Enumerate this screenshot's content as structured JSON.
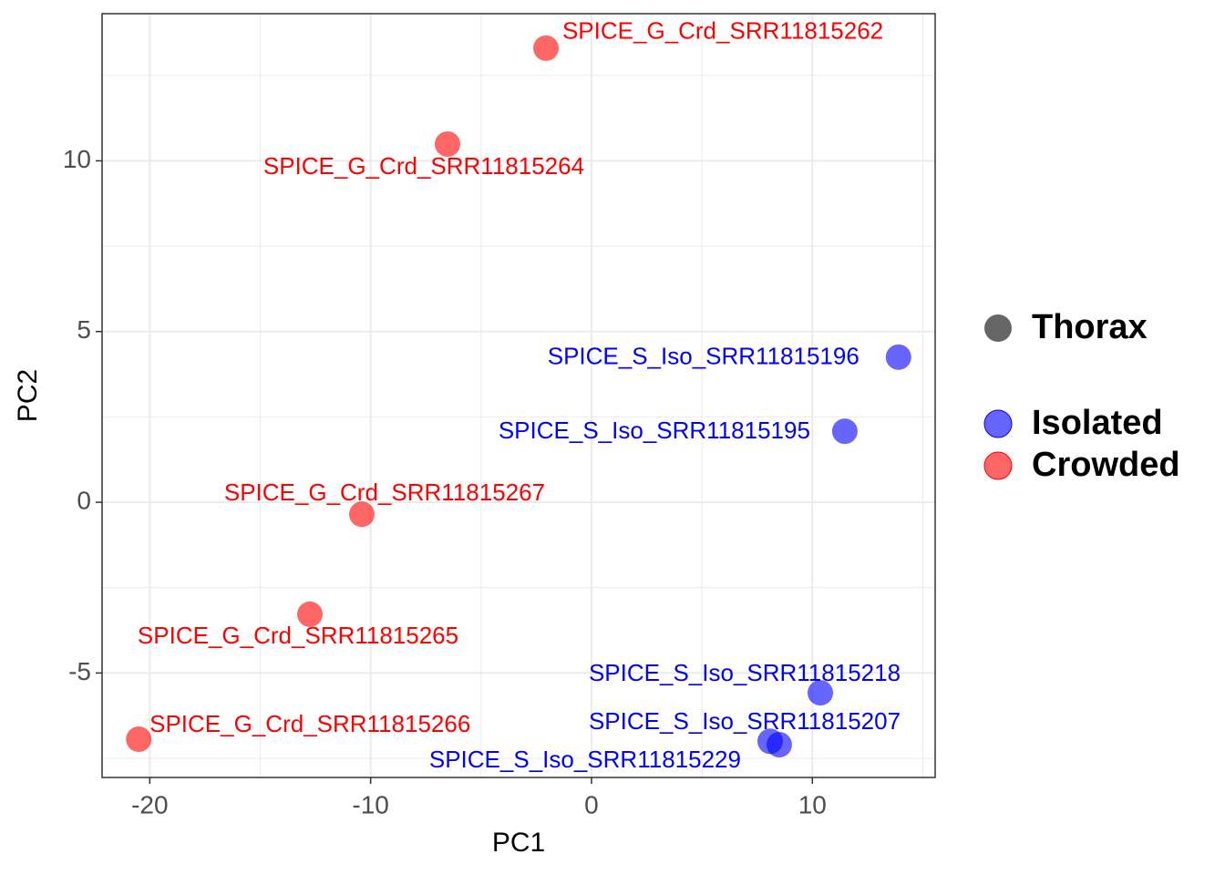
{
  "chart_data": {
    "type": "scatter",
    "x_label": "PC1",
    "y_label": "PC2",
    "xlim": [
      -22.16,
      15.56
    ],
    "ylim": [
      -8.06,
      14.31
    ],
    "xticks": [
      -20,
      -10,
      0,
      10
    ],
    "yticks": [
      -5,
      0,
      5,
      10
    ],
    "grid": true,
    "minor_grid": true,
    "shape_legend": "Thorax",
    "series": [
      {
        "name": "Isolated",
        "color": "#0000ff",
        "x": [
          13.9,
          11.47,
          10.36,
          8.09,
          8.5
        ],
        "values": [
          4.25,
          2.08,
          -5.58,
          -7.0,
          -7.1
        ],
        "labels": [
          "SPICE_S_Iso_SRR11815196",
          "SPICE_S_Iso_SRR11815195",
          "SPICE_S_Iso_SRR11815218",
          "SPICE_S_Iso_SRR11815207",
          "SPICE_S_Iso_SRR11815229"
        ]
      },
      {
        "name": "Crowded",
        "color": "#ff0000",
        "x": [
          -2.06,
          -6.52,
          -10.4,
          -12.75,
          -20.5
        ],
        "values": [
          13.3,
          10.49,
          -0.35,
          -3.28,
          -6.94
        ],
        "labels": [
          "SPICE_G_Crd_SRR11815262",
          "SPICE_G_Crd_SRR11815264",
          "SPICE_G_Crd_SRR11815267",
          "SPICE_G_Crd_SRR11815265",
          "SPICE_G_Crd_SRR11815266"
        ]
      }
    ]
  }
}
